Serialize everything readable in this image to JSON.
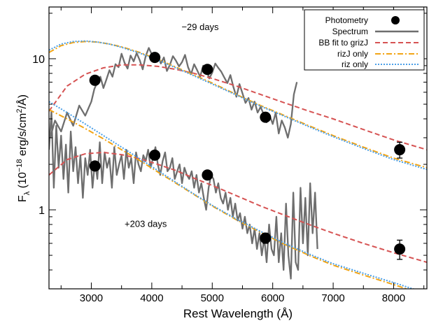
{
  "chart_data": {
    "type": "line",
    "xlabel": "Rest Wavelength (Å)",
    "ylabel_prefix": "F",
    "ylabel_sub": "λ",
    "ylabel_rest": " (10",
    "ylabel_exp": "−18",
    "ylabel_units": " erg/s/cm",
    "ylabel_units_exp": "2",
    "ylabel_end": "/Å)",
    "xlim": [
      2300,
      8550
    ],
    "ylim": [
      0.3,
      22
    ],
    "yscale": "log",
    "xticks": [
      3000,
      4000,
      5000,
      6000,
      7000,
      8000
    ],
    "xtick_labels": [
      "3000",
      "4000",
      "5000",
      "6000",
      "7000",
      "8000"
    ],
    "yticks": [
      1,
      10
    ],
    "ytick_labels": [
      "1",
      "10"
    ],
    "annotations": [
      {
        "text": "−29 days",
        "x": 4800,
        "y": 15.5
      },
      {
        "text": "+203 days",
        "x": 3900,
        "y": 0.77
      }
    ],
    "legend": {
      "position": "top-right",
      "entries": [
        "Photometry",
        "Spectrum",
        "BB fit to grizJ",
        "rizJ only",
        "riz only"
      ]
    },
    "colors": {
      "photometry": "#000000",
      "spectrum": "#6e6e6e",
      "bb_grizJ": "#d65353",
      "rizJ": "#f2a516",
      "riz": "#4a9fe8"
    },
    "series": [
      {
        "name": "Photometry",
        "epoch": "−29 days",
        "points": [
          {
            "x": 3060,
            "y": 7.2,
            "yerr": 0
          },
          {
            "x": 4050,
            "y": 10.2,
            "yerr": 0
          },
          {
            "x": 4920,
            "y": 8.5,
            "yerr": 0
          },
          {
            "x": 5880,
            "y": 4.1,
            "yerr": 0
          },
          {
            "x": 8100,
            "y": 2.5,
            "yerr": 0.3
          }
        ]
      },
      {
        "name": "Photometry",
        "epoch": "+203 days",
        "points": [
          {
            "x": 3060,
            "y": 1.95,
            "yerr": 0
          },
          {
            "x": 4050,
            "y": 2.3,
            "yerr": 0
          },
          {
            "x": 4920,
            "y": 1.7,
            "yerr": 0
          },
          {
            "x": 5880,
            "y": 0.65,
            "yerr": 0.05
          },
          {
            "x": 8100,
            "y": 0.55,
            "yerr": 0.08
          }
        ]
      },
      {
        "name": "Spectrum",
        "epoch": "−29 days",
        "x": [
          2320,
          2400,
          2500,
          2600,
          2700,
          2800,
          2900,
          3000,
          3050,
          3100,
          3150,
          3200,
          3250,
          3300,
          3350,
          3400,
          3450,
          3500,
          3550,
          3600,
          3650,
          3700,
          3750,
          3800,
          3850,
          3900,
          3950,
          4000,
          4050,
          4100,
          4150,
          4200,
          4250,
          4300,
          4350,
          4400,
          4450,
          4500,
          4550,
          4600,
          4650,
          4700,
          4750,
          4800,
          4850,
          4900,
          4950,
          5000,
          5050,
          5100,
          5150,
          5200,
          5250,
          5300,
          5350,
          5400,
          5450,
          5500,
          5550,
          5600,
          5650,
          5700,
          5750,
          5800,
          5850,
          5900,
          5950,
          6000,
          6050,
          6100,
          6150,
          6200,
          6250,
          6300,
          6350,
          6400
        ],
        "y": [
          3.0,
          3.9,
          3.3,
          4.4,
          3.6,
          4.9,
          4.2,
          5.2,
          6.3,
          7.0,
          7.6,
          6.4,
          7.3,
          8.4,
          7.6,
          9.2,
          8.8,
          10.8,
          9.4,
          8.6,
          10.5,
          9.6,
          10.9,
          9.8,
          8.5,
          10.4,
          11.8,
          10.7,
          9.7,
          10.6,
          9.3,
          10.2,
          8.3,
          9.1,
          10.4,
          9.7,
          8.9,
          9.5,
          10.6,
          8.8,
          7.9,
          9.2,
          8.4,
          7.6,
          9.0,
          8.6,
          7.4,
          8.1,
          9.3,
          8.7,
          8.2,
          7.5,
          6.9,
          7.8,
          6.5,
          5.6,
          6.8,
          5.9,
          5.1,
          5.5,
          4.6,
          5.2,
          4.4,
          4.8,
          4.3,
          3.8,
          4.2,
          3.7,
          4.4,
          3.2,
          3.9,
          3.5,
          3.0,
          3.7,
          5.8,
          7.0
        ]
      },
      {
        "name": "Spectrum",
        "epoch": "+203 days",
        "x": [
          2300,
          2340,
          2380,
          2420,
          2460,
          2500,
          2540,
          2580,
          2620,
          2660,
          2700,
          2740,
          2780,
          2820,
          2860,
          2900,
          2940,
          2980,
          3020,
          3060,
          3100,
          3140,
          3180,
          3220,
          3260,
          3300,
          3340,
          3380,
          3420,
          3460,
          3500,
          3540,
          3580,
          3620,
          3660,
          3700,
          3740,
          3780,
          3820,
          3860,
          3900,
          3940,
          3980,
          4020,
          4060,
          4100,
          4140,
          4180,
          4220,
          4260,
          4300,
          4340,
          4380,
          4420,
          4460,
          4500,
          4540,
          4580,
          4620,
          4660,
          4700,
          4740,
          4780,
          4820,
          4860,
          4900,
          4940,
          4980,
          5020,
          5060,
          5100,
          5140,
          5180,
          5220,
          5260,
          5300,
          5340,
          5380,
          5420,
          5460,
          5500,
          5540,
          5580,
          5620,
          5660,
          5700,
          5740,
          5780,
          5820,
          5860,
          5900,
          5940,
          5980,
          6020,
          6060,
          6100,
          6140,
          6180,
          6220,
          6260,
          6300,
          6340,
          6380,
          6420,
          6460,
          6500,
          6540,
          6580,
          6620,
          6660,
          6700,
          6740
        ],
        "y": [
          2.5,
          4.5,
          1.4,
          3.6,
          1.9,
          3.1,
          1.6,
          2.7,
          1.3,
          3.3,
          1.8,
          2.6,
          1.5,
          2.3,
          1.2,
          2.2,
          1.7,
          2.5,
          1.4,
          2.1,
          1.6,
          2.8,
          1.5,
          2.4,
          1.9,
          2.2,
          1.4,
          2.6,
          1.7,
          2.0,
          2.3,
          1.6,
          2.5,
          1.9,
          2.2,
          1.5,
          2.4,
          2.0,
          1.8,
          2.3,
          2.1,
          2.5,
          1.9,
          2.2,
          2.6,
          2.0,
          1.7,
          2.1,
          2.4,
          1.8,
          1.9,
          2.2,
          1.6,
          1.8,
          2.0,
          1.5,
          1.9,
          1.7,
          1.6,
          1.8,
          1.4,
          1.7,
          1.3,
          1.5,
          1.2,
          1.0,
          1.4,
          1.7,
          1.6,
          1.3,
          1.5,
          1.2,
          1.1,
          1.3,
          1.0,
          1.2,
          0.9,
          1.1,
          0.85,
          0.95,
          0.75,
          0.9,
          0.7,
          0.8,
          0.6,
          0.75,
          0.55,
          0.7,
          0.5,
          0.65,
          0.45,
          0.8,
          0.55,
          0.5,
          0.9,
          0.45,
          0.7,
          0.4,
          1.1,
          0.5,
          0.35,
          1.3,
          0.45,
          0.4,
          1.4,
          0.6,
          1.2,
          0.5,
          1.5,
          0.7,
          1.3,
          0.55
        ]
      },
      {
        "name": "BB fit to grizJ",
        "epoch": "−29 days",
        "x": [
          2300,
          2600,
          2900,
          3200,
          3500,
          3800,
          4100,
          4400,
          4700,
          5000,
          5400,
          5800,
          6200,
          6600,
          7000,
          7500,
          8000,
          8550
        ],
        "y": [
          4.5,
          6.6,
          7.9,
          8.7,
          9.1,
          9.1,
          8.9,
          8.5,
          8.0,
          7.4,
          6.6,
          5.8,
          5.1,
          4.5,
          4.0,
          3.4,
          2.9,
          2.5
        ]
      },
      {
        "name": "BB fit to grizJ",
        "epoch": "+203 days",
        "x": [
          2300,
          2600,
          2900,
          3200,
          3500,
          3800,
          4100,
          4400,
          4700,
          5000,
          5400,
          5800,
          6200,
          6600,
          7000,
          7500,
          8000,
          8550
        ],
        "y": [
          1.7,
          2.15,
          2.35,
          2.4,
          2.32,
          2.18,
          2.0,
          1.82,
          1.62,
          1.45,
          1.24,
          1.06,
          0.92,
          0.8,
          0.7,
          0.6,
          0.52,
          0.45
        ]
      },
      {
        "name": "rizJ only",
        "epoch": "−29 days",
        "x": [
          2300,
          2500,
          2700,
          2900,
          3100,
          3300,
          3500,
          3800,
          4100,
          4400,
          4700,
          5000,
          5400,
          5800,
          6200,
          6600,
          7000,
          7500,
          8000,
          8550
        ],
        "y": [
          11.0,
          12.2,
          12.8,
          13.0,
          12.9,
          12.5,
          12.0,
          11.0,
          9.9,
          8.8,
          7.8,
          6.9,
          5.8,
          4.9,
          4.2,
          3.6,
          3.1,
          2.6,
          2.2,
          1.9
        ]
      },
      {
        "name": "rizJ only",
        "epoch": "+203 days",
        "x": [
          2300,
          2600,
          2900,
          3200,
          3500,
          3800,
          4100,
          4400,
          4700,
          5000,
          5400,
          5800,
          6200,
          6600,
          7000,
          7500,
          8000,
          8550
        ],
        "y": [
          4.6,
          4.0,
          3.45,
          2.95,
          2.5,
          2.12,
          1.78,
          1.5,
          1.26,
          1.06,
          0.86,
          0.71,
          0.59,
          0.5,
          0.43,
          0.37,
          0.32,
          0.27
        ]
      },
      {
        "name": "riz only",
        "epoch": "−29 days",
        "x": [
          2300,
          2500,
          2700,
          2900,
          3100,
          3300,
          3500,
          3800,
          4100,
          4400,
          4700,
          5000,
          5400,
          5800,
          6200,
          6600,
          7000,
          7500,
          8000,
          8550
        ],
        "y": [
          11.4,
          12.5,
          13.0,
          13.1,
          12.9,
          12.5,
          11.9,
          10.9,
          9.8,
          8.7,
          7.7,
          6.8,
          5.75,
          4.85,
          4.15,
          3.55,
          3.05,
          2.55,
          2.15,
          1.85
        ]
      },
      {
        "name": "riz only",
        "epoch": "+203 days",
        "x": [
          2300,
          2600,
          2900,
          3200,
          3500,
          3800,
          4100,
          4400,
          4700,
          5000,
          5400,
          5800,
          6200,
          6600,
          7000,
          7500,
          8000,
          8550
        ],
        "y": [
          5.2,
          4.4,
          3.7,
          3.1,
          2.6,
          2.18,
          1.82,
          1.52,
          1.27,
          1.07,
          0.87,
          0.72,
          0.6,
          0.51,
          0.44,
          0.38,
          0.33,
          0.28
        ]
      }
    ]
  }
}
